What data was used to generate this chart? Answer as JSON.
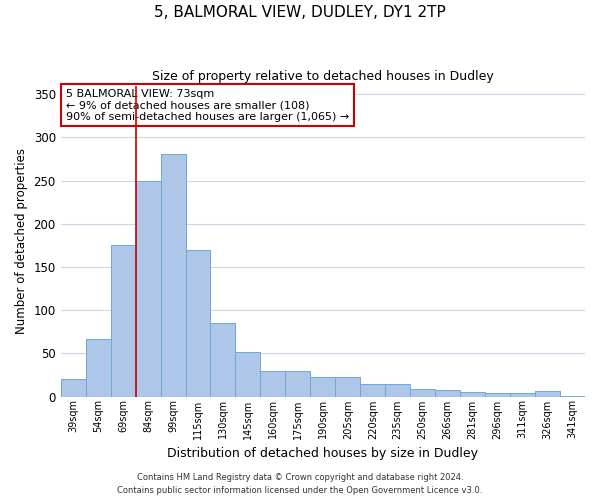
{
  "title": "5, BALMORAL VIEW, DUDLEY, DY1 2TP",
  "subtitle": "Size of property relative to detached houses in Dudley",
  "xlabel": "Distribution of detached houses by size in Dudley",
  "ylabel": "Number of detached properties",
  "bar_labels": [
    "39sqm",
    "54sqm",
    "69sqm",
    "84sqm",
    "99sqm",
    "115sqm",
    "130sqm",
    "145sqm",
    "160sqm",
    "175sqm",
    "190sqm",
    "205sqm",
    "220sqm",
    "235sqm",
    "250sqm",
    "266sqm",
    "281sqm",
    "296sqm",
    "311sqm",
    "326sqm",
    "341sqm"
  ],
  "bar_values": [
    20,
    67,
    175,
    249,
    281,
    170,
    85,
    52,
    30,
    30,
    23,
    23,
    15,
    15,
    9,
    8,
    5,
    4,
    4,
    6,
    1
  ],
  "bar_color": "#aec6e8",
  "bar_edge_color": "#6fa8d4",
  "vline_color": "#cc0000",
  "vline_position": 2.5,
  "ylim": [
    0,
    360
  ],
  "yticks": [
    0,
    50,
    100,
    150,
    200,
    250,
    300,
    350
  ],
  "annotation_title": "5 BALMORAL VIEW: 73sqm",
  "annotation_line1": "← 9% of detached houses are smaller (108)",
  "annotation_line2": "90% of semi-detached houses are larger (1,065) →",
  "annotation_box_color": "#ffffff",
  "annotation_box_edge": "#cc0000",
  "footer1": "Contains HM Land Registry data © Crown copyright and database right 2024.",
  "footer2": "Contains public sector information licensed under the Open Government Licence v3.0.",
  "bg_color": "#ffffff",
  "grid_color": "#c8d8e8",
  "title_fontsize": 11,
  "subtitle_fontsize": 9,
  "ylabel_fontsize": 8.5,
  "xlabel_fontsize": 9,
  "ytick_fontsize": 8.5,
  "xtick_fontsize": 7,
  "annotation_fontsize": 8,
  "footer_fontsize": 6
}
